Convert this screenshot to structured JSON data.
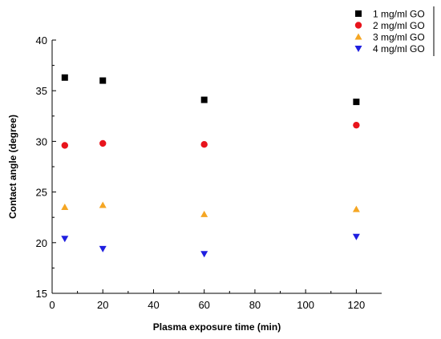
{
  "chart_data": {
    "type": "scatter",
    "title": "",
    "xlabel": "Plasma exposure time (min)",
    "ylabel": "Contact angle (degree)",
    "xlim": [
      0,
      130
    ],
    "ylim": [
      15,
      40
    ],
    "xticks": [
      0,
      20,
      40,
      60,
      80,
      100,
      120
    ],
    "yticks": [
      15,
      20,
      25,
      30,
      35,
      40
    ],
    "legend_position": "top-right",
    "grid": false,
    "series": [
      {
        "name": "1 mg/ml GO",
        "marker": "square",
        "color": "#000000",
        "x": [
          5,
          20,
          60,
          120
        ],
        "y": [
          36.3,
          36.0,
          34.1,
          33.9
        ]
      },
      {
        "name": "2 mg/ml GO",
        "marker": "circle",
        "color": "#e8141c",
        "x": [
          5,
          20,
          60,
          120
        ],
        "y": [
          29.6,
          29.8,
          29.7,
          31.6
        ]
      },
      {
        "name": "3 mg/ml GO",
        "marker": "triangle-up",
        "color": "#f5a623",
        "x": [
          5,
          20,
          60,
          120
        ],
        "y": [
          23.5,
          23.7,
          22.8,
          23.3
        ]
      },
      {
        "name": "4 mg/ml GO",
        "marker": "triangle-down",
        "color": "#1f1fe0",
        "x": [
          5,
          20,
          60,
          120
        ],
        "y": [
          20.4,
          19.4,
          18.9,
          20.6
        ]
      }
    ]
  }
}
